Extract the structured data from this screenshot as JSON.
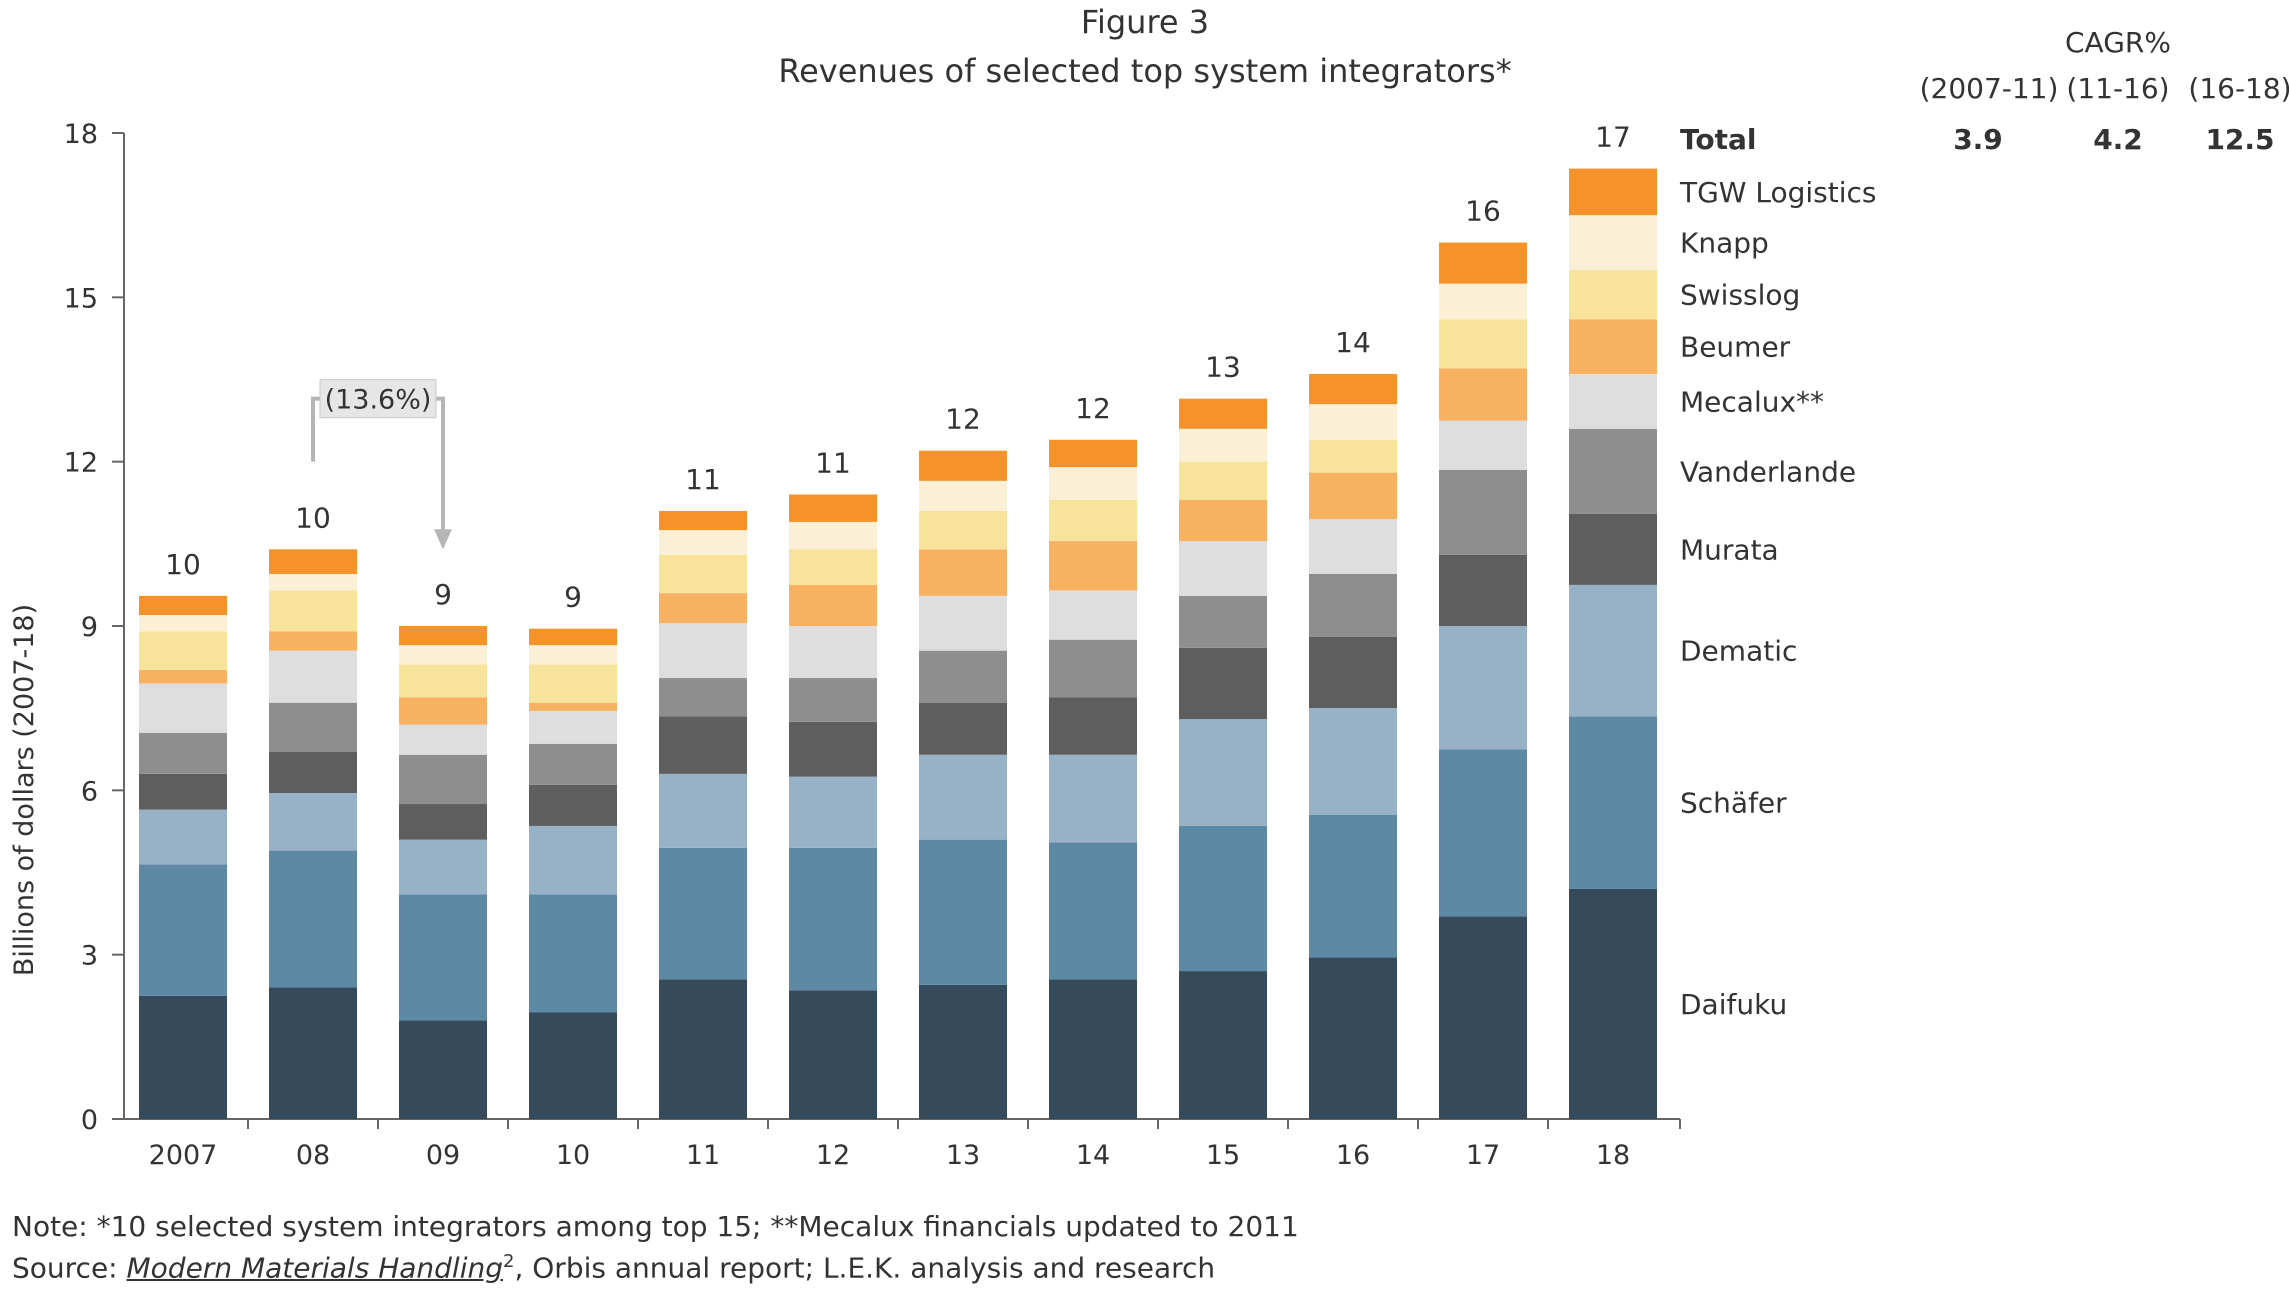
{
  "chart_data": {
    "type": "bar",
    "stacked": true,
    "figure_label": "Figure 3",
    "title": "Revenues of selected top system integrators*",
    "ylabel": "Billions of dollars (2007-18)",
    "ylim": [
      0,
      18
    ],
    "yticks": [
      0,
      3,
      6,
      9,
      12,
      15,
      18
    ],
    "categories": [
      "2007",
      "08",
      "09",
      "10",
      "11",
      "12",
      "13",
      "14",
      "15",
      "16",
      "17",
      "18"
    ],
    "totals_labels": [
      "10",
      "10",
      "9",
      "9",
      "11",
      "11",
      "12",
      "12",
      "13",
      "14",
      "16",
      "17"
    ],
    "series": [
      {
        "name": "Daifuku",
        "color": "#354b5c",
        "values": [
          2.25,
          2.4,
          1.8,
          1.95,
          2.55,
          2.35,
          2.45,
          2.55,
          2.7,
          2.95,
          3.7,
          4.2
        ]
      },
      {
        "name": "Schäfer",
        "color": "#5e89a5",
        "values": [
          2.4,
          2.5,
          2.3,
          2.15,
          2.4,
          2.6,
          2.65,
          2.5,
          2.65,
          2.6,
          3.05,
          3.15
        ]
      },
      {
        "name": "Dematic",
        "color": "#97b2c6",
        "values": [
          1.0,
          1.05,
          1.0,
          1.25,
          1.35,
          1.3,
          1.55,
          1.6,
          1.95,
          1.95,
          2.25,
          2.4
        ]
      },
      {
        "name": "Murata",
        "color": "#5e5e5e",
        "values": [
          0.65,
          0.75,
          0.65,
          0.75,
          1.05,
          1.0,
          0.95,
          1.05,
          1.3,
          1.3,
          1.3,
          1.3
        ]
      },
      {
        "name": "Vanderlande",
        "color": "#8e8e8e",
        "values": [
          0.75,
          0.9,
          0.9,
          0.75,
          0.7,
          0.8,
          0.95,
          1.05,
          0.95,
          1.15,
          1.55,
          1.55
        ]
      },
      {
        "name": "Mecalux**",
        "color": "#dedede",
        "values": [
          0.9,
          0.95,
          0.55,
          0.6,
          1.0,
          0.95,
          1.0,
          0.9,
          1.0,
          1.0,
          0.9,
          1.0
        ]
      },
      {
        "name": "Beumer",
        "color": "#f8b061",
        "values": [
          0.25,
          0.35,
          0.5,
          0.15,
          0.55,
          0.75,
          0.85,
          0.9,
          0.75,
          0.85,
          0.95,
          1.0
        ]
      },
      {
        "name": "Swisslog",
        "color": "#f8e39a",
        "values": [
          0.7,
          0.75,
          0.6,
          0.7,
          0.7,
          0.65,
          0.7,
          0.75,
          0.7,
          0.6,
          0.9,
          0.9
        ]
      },
      {
        "name": "Knapp",
        "color": "#fbf0d6",
        "values": [
          0.3,
          0.3,
          0.35,
          0.35,
          0.45,
          0.5,
          0.55,
          0.6,
          0.6,
          0.65,
          0.65,
          1.0
        ]
      },
      {
        "name": "TGW Logistics",
        "color": "#f5922a",
        "values": [
          0.35,
          0.45,
          0.35,
          0.3,
          0.35,
          0.5,
          0.55,
          0.5,
          0.55,
          0.55,
          0.75,
          0.85
        ]
      }
    ],
    "bracket_annotation": {
      "text": "(13.6%)",
      "from_category": "08",
      "to_category": "09"
    },
    "cagr": {
      "header": "CAGR%",
      "columns": [
        "(2007-11)",
        "(11-16)",
        "(16-18)"
      ],
      "row_label": "Total",
      "values": [
        "3.9",
        "4.2",
        "12.5"
      ]
    },
    "note": "Note: *10 selected system integrators among top 15; **Mecalux financials updated to 2011",
    "source_prefix": "Source: ",
    "source_italic": "Modern Materials Handling",
    "source_sup": "2",
    "source_rest": ", Orbis annual report; L.E.K. analysis and research"
  }
}
